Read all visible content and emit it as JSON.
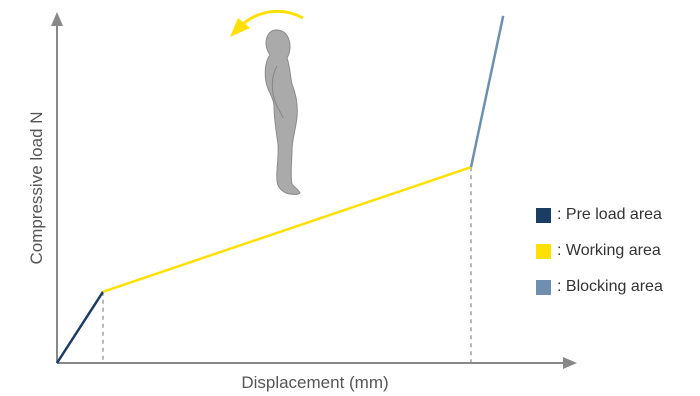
{
  "chart_data": {
    "type": "line",
    "xlabel": "Displacement (mm)",
    "ylabel": "Compressive load N",
    "grid": false,
    "legend_position": "right",
    "series": [
      {
        "name": "Pre load area",
        "color": "#1a3d63",
        "points": [
          [
            0,
            0
          ],
          [
            10,
            16
          ]
        ]
      },
      {
        "name": "Working area",
        "color": "#ffe000",
        "points": [
          [
            10,
            16
          ],
          [
            90,
            44
          ]
        ]
      },
      {
        "name": "Blocking area",
        "color": "#6f8fb0",
        "points": [
          [
            90,
            44
          ],
          [
            97,
            78
          ]
        ]
      }
    ],
    "guides": [
      {
        "x": 10,
        "y": 16
      },
      {
        "x": 90,
        "y": 44
      }
    ],
    "icons": {
      "figure": "human-figure-icon",
      "arrow": "curved-arrow-icon"
    }
  },
  "legend": {
    "items": [
      {
        "label": ": Pre load area",
        "color": "#1a3d63"
      },
      {
        "label": ": Working area",
        "color": "#ffe000"
      },
      {
        "label": ": Blocking area",
        "color": "#6f8fb0"
      }
    ]
  }
}
